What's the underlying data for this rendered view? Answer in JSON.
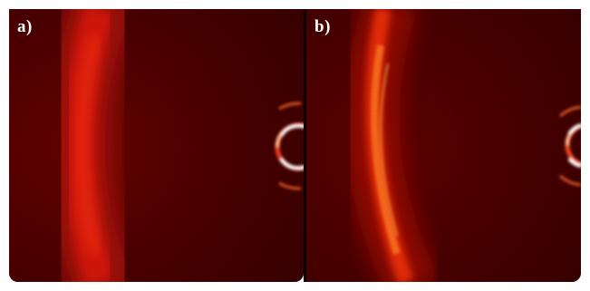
{
  "figure": {
    "panels": [
      {
        "label": "a)",
        "description_name": "diffraction-pattern-a",
        "colors": {
          "background": "#3a0000",
          "arc": "#ff2a0a",
          "ring": "#ffffff"
        }
      },
      {
        "label": "b)",
        "description_name": "diffraction-pattern-b",
        "colors": {
          "background": "#3a0000",
          "arc": "#ff5a10",
          "ring": "#ffffff"
        }
      }
    ]
  }
}
